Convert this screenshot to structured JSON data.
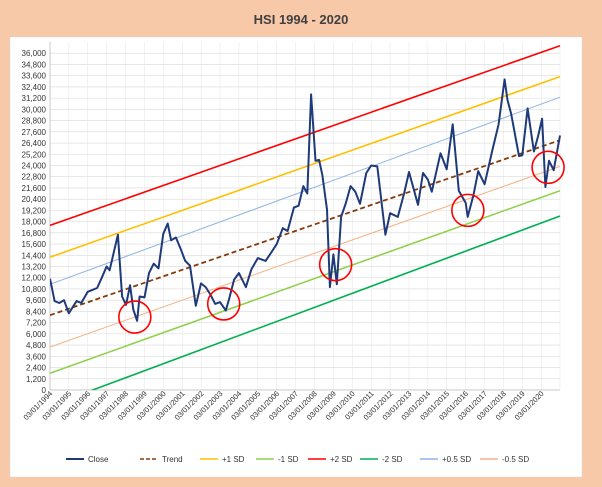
{
  "chart_data": {
    "type": "line",
    "title": "HSI  1994 - 2020",
    "xlabel": "",
    "ylabel": "",
    "x_range": [
      "1994-01-03",
      "2020-12-31"
    ],
    "ylim": [
      0,
      37200
    ],
    "y_ticks": [
      "0",
      "1,200",
      "2,400",
      "3,600",
      "4,800",
      "6,000",
      "7,200",
      "8,400",
      "9,600",
      "10,800",
      "12,000",
      "13,200",
      "14,400",
      "15,600",
      "16,800",
      "18,000",
      "19,200",
      "20,400",
      "21,600",
      "22,800",
      "24,000",
      "25,200",
      "26,400",
      "27,600",
      "28,800",
      "30,000",
      "31,200",
      "32,400",
      "33,600",
      "34,800",
      "36,000"
    ],
    "x_ticks": [
      "03/01/1994",
      "03/01/1995",
      "03/01/1996",
      "03/01/1997",
      "03/01/1998",
      "03/01/1999",
      "03/01/2000",
      "03/01/2001",
      "03/01/2002",
      "03/01/2003",
      "03/01/2004",
      "03/01/2005",
      "03/01/2006",
      "03/01/2007",
      "03/01/2008",
      "03/01/2009",
      "03/01/2010",
      "03/01/2011",
      "03/01/2012",
      "03/01/2013",
      "03/01/2014",
      "03/01/2015",
      "03/01/2016",
      "03/01/2017",
      "03/01/2018",
      "03/01/2019",
      "03/01/2020"
    ],
    "grid": true,
    "legend_position": "bottom",
    "series": [
      {
        "name": "Close",
        "color": "#1f3a7a",
        "style": "solid",
        "x": [
          "1994-01-03",
          "1994-04-01",
          "1994-07-01",
          "1994-10-01",
          "1995-01-02",
          "1995-03-01",
          "1995-06-01",
          "1995-09-01",
          "1996-01-02",
          "1996-04-01",
          "1996-07-01",
          "1996-10-01",
          "1997-01-02",
          "1997-03-01",
          "1997-06-01",
          "1997-08-07",
          "1997-10-28",
          "1998-01-12",
          "1998-04-01",
          "1998-06-01",
          "1998-08-13",
          "1998-10-01",
          "1999-01-04",
          "1999-04-01",
          "1999-07-01",
          "1999-10-01",
          "2000-01-03",
          "2000-03-28",
          "2000-06-01",
          "2000-09-01",
          "2000-12-01",
          "2001-03-01",
          "2001-06-01",
          "2001-09-21",
          "2001-12-31",
          "2002-04-01",
          "2002-07-01",
          "2002-10-01",
          "2003-01-02",
          "2003-04-25",
          "2003-07-01",
          "2003-10-01",
          "2004-01-02",
          "2004-05-17",
          "2004-09-01",
          "2005-01-03",
          "2005-06-01",
          "2005-10-01",
          "2006-01-03",
          "2006-05-01",
          "2006-08-01",
          "2006-12-01",
          "2007-03-01",
          "2007-06-01",
          "2007-08-17",
          "2007-10-30",
          "2008-01-22",
          "2008-04-01",
          "2008-06-02",
          "2008-09-01",
          "2008-10-27",
          "2009-01-02",
          "2009-03-09",
          "2009-06-01",
          "2009-09-01",
          "2009-12-01",
          "2010-03-01",
          "2010-06-01",
          "2010-10-01",
          "2011-01-03",
          "2011-05-01",
          "2011-10-04",
          "2012-01-03",
          "2012-06-01",
          "2012-10-01",
          "2013-01-02",
          "2013-06-25",
          "2013-10-01",
          "2014-01-02",
          "2014-03-20",
          "2014-09-03",
          "2015-01-02",
          "2015-04-27",
          "2015-08-24",
          "2016-01-04",
          "2016-02-12",
          "2016-06-01",
          "2016-09-01",
          "2017-01-03",
          "2017-06-01",
          "2017-10-01",
          "2018-01-26",
          "2018-03-23",
          "2018-06-01",
          "2018-10-30",
          "2019-01-02",
          "2019-04-15",
          "2019-08-15",
          "2019-11-01",
          "2020-01-20",
          "2020-03-23",
          "2020-06-01",
          "2020-09-01",
          "2020-12-31"
        ],
        "values": [
          11900,
          9500,
          9300,
          9600,
          8200,
          8700,
          9500,
          9300,
          10500,
          10700,
          10900,
          12000,
          13200,
          12800,
          15000,
          16600,
          10000,
          9100,
          11200,
          8600,
          7400,
          10000,
          9900,
          12500,
          13500,
          13000,
          16700,
          17800,
          16000,
          16300,
          15100,
          13800,
          13300,
          9000,
          11400,
          11000,
          10200,
          9200,
          9400,
          8500,
          9800,
          11800,
          12500,
          11000,
          12900,
          14100,
          13800,
          14800,
          15600,
          17300,
          17000,
          19500,
          19700,
          21800,
          21000,
          31600,
          24500,
          24600,
          23000,
          19300,
          11000,
          14500,
          11300,
          18500,
          20000,
          21800,
          21200,
          19900,
          23200,
          24000,
          23900,
          16600,
          18900,
          18500,
          21000,
          23300,
          19800,
          23200,
          22500,
          21200,
          25300,
          23600,
          28400,
          21300,
          20000,
          18500,
          20800,
          23400,
          22000,
          25600,
          28400,
          33200,
          31000,
          29500,
          25000,
          25100,
          30100,
          25500,
          27100,
          29000,
          21700,
          24500,
          23500,
          27200
        ]
      },
      {
        "name": "Trend",
        "color": "#843c0c",
        "style": "dashed",
        "x": [
          "1994-01-03",
          "2020-12-31"
        ],
        "values": [
          8000,
          26700
        ]
      },
      {
        "name": "+1 SD",
        "color": "#ffc000",
        "style": "solid",
        "x": [
          "1994-01-03",
          "2020-12-31"
        ],
        "values": [
          14200,
          33500
        ]
      },
      {
        "name": "-1 SD",
        "color": "#92d050",
        "style": "solid",
        "x": [
          "1994-01-03",
          "2020-12-31"
        ],
        "values": [
          1800,
          21300
        ]
      },
      {
        "name": "+2 SD",
        "color": "#ff0000",
        "style": "solid",
        "x": [
          "1994-01-03",
          "2020-12-31"
        ],
        "values": [
          17600,
          36800
        ]
      },
      {
        "name": "-2 SD",
        "color": "#00b050",
        "style": "solid",
        "x": [
          "1994-01-03",
          "2020-12-31"
        ],
        "values": [
          -1700,
          18600
        ]
      },
      {
        "name": "+0.5 SD",
        "color": "#8eb4e3",
        "style": "solid",
        "x": [
          "1994-01-03",
          "2020-12-31"
        ],
        "values": [
          11300,
          31300
        ]
      },
      {
        "name": "-0.5 SD",
        "color": "#f4b183",
        "style": "solid",
        "x": [
          "1994-01-03",
          "2020-12-31"
        ],
        "values": [
          4600,
          23900
        ]
      }
    ],
    "annotations": [
      {
        "type": "circle",
        "color": "#ff0000",
        "x": "1998-07-01",
        "y": 7800
      },
      {
        "type": "circle",
        "color": "#ff0000",
        "x": "2003-03-15",
        "y": 9200
      },
      {
        "type": "circle",
        "color": "#ff0000",
        "x": "2009-02-15",
        "y": 13400
      },
      {
        "type": "circle",
        "color": "#ff0000",
        "x": "2016-02-15",
        "y": 19200
      },
      {
        "type": "circle",
        "color": "#ff0000",
        "x": "2020-05-15",
        "y": 23800
      }
    ]
  }
}
